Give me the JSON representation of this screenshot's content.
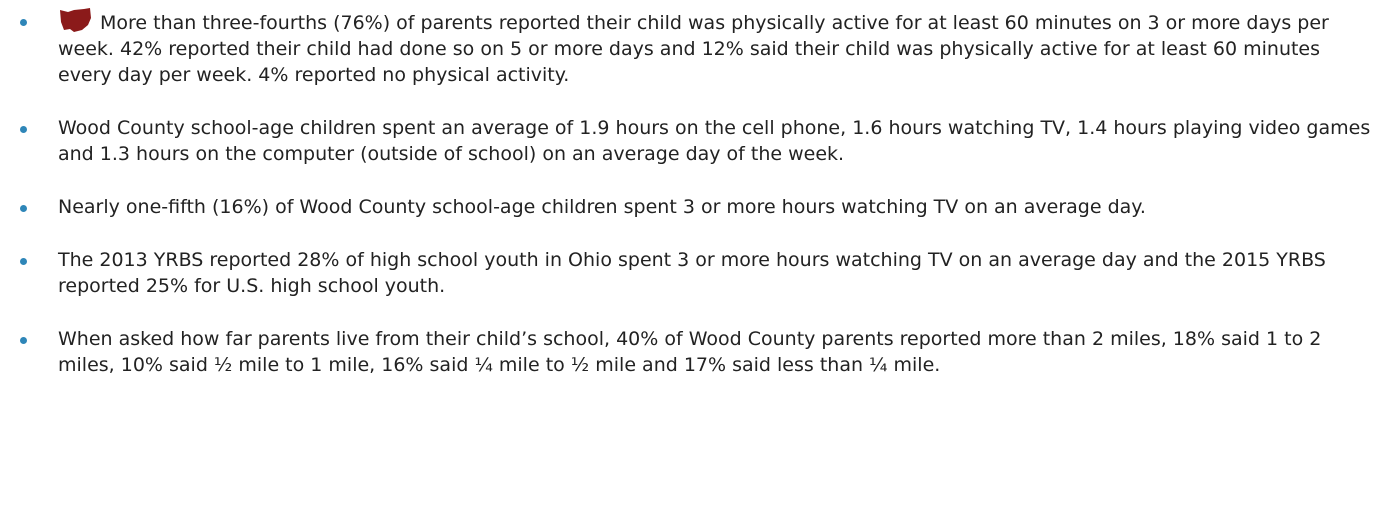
{
  "bullets": [
    "More than three-fourths (76%) of parents reported their child was physically active for at least 60 minutes on 3 or more days per week. 42% reported their child had done so on 5 or more days and 12% said their child was physically active for at least 60 minutes every day per week. 4% reported no physical activity.",
    "Wood County school-age children spent an average of 1.9 hours on the cell phone, 1.6 hours watching TV, 1.4 hours playing video games and 1.3 hours on the computer (outside of school) on an average day of the week.",
    "Nearly one-fifth (16%) of Wood County school-age children spent 3 or more hours watching TV on an average day.",
    "The 2013 YRBS reported 28% of high school youth in Ohio spent 3 or more hours watching TV on an average day and the 2015 YRBS reported 25% for U.S. high school youth.",
    "When asked how far parents live from their child’s school, 40% of Wood County parents reported more than 2 miles, 18% said 1 to 2 miles, 10% said ½ mile to 1 mile, 16% said ¼ mile to ½ mile and 17% said less than ¼ mile."
  ]
}
